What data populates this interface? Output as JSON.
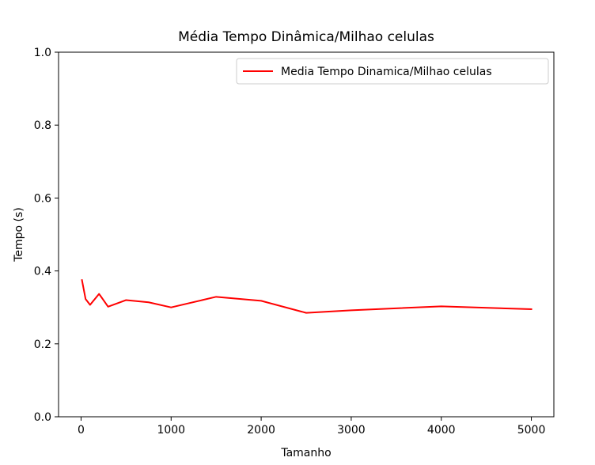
{
  "chart_data": {
    "type": "line",
    "title": "Média Tempo Dinâmica/Milhao celulas",
    "xlabel": "Tamanho",
    "ylabel": "Tempo (s)",
    "xlim": [
      -250,
      5250
    ],
    "ylim": [
      0.0,
      1.0
    ],
    "xticks": [
      0,
      1000,
      2000,
      3000,
      4000,
      5000
    ],
    "xtick_labels": [
      "0",
      "1000",
      "2000",
      "3000",
      "4000",
      "5000"
    ],
    "yticks": [
      0.0,
      0.2,
      0.4,
      0.6,
      0.8,
      1.0
    ],
    "ytick_labels": [
      "0.0",
      "0.2",
      "0.4",
      "0.6",
      "0.8",
      "1.0"
    ],
    "grid": false,
    "legend_position": "upper-right",
    "series": [
      {
        "name": "Media Tempo Dinamica/Milhao celulas",
        "color": "#ff0000",
        "x": [
          10,
          50,
          100,
          200,
          300,
          500,
          750,
          1000,
          1500,
          2000,
          2500,
          3000,
          4000,
          5000
        ],
        "y": [
          0.375,
          0.323,
          0.307,
          0.337,
          0.302,
          0.32,
          0.314,
          0.3,
          0.329,
          0.318,
          0.285,
          0.292,
          0.303,
          0.295
        ]
      }
    ]
  }
}
